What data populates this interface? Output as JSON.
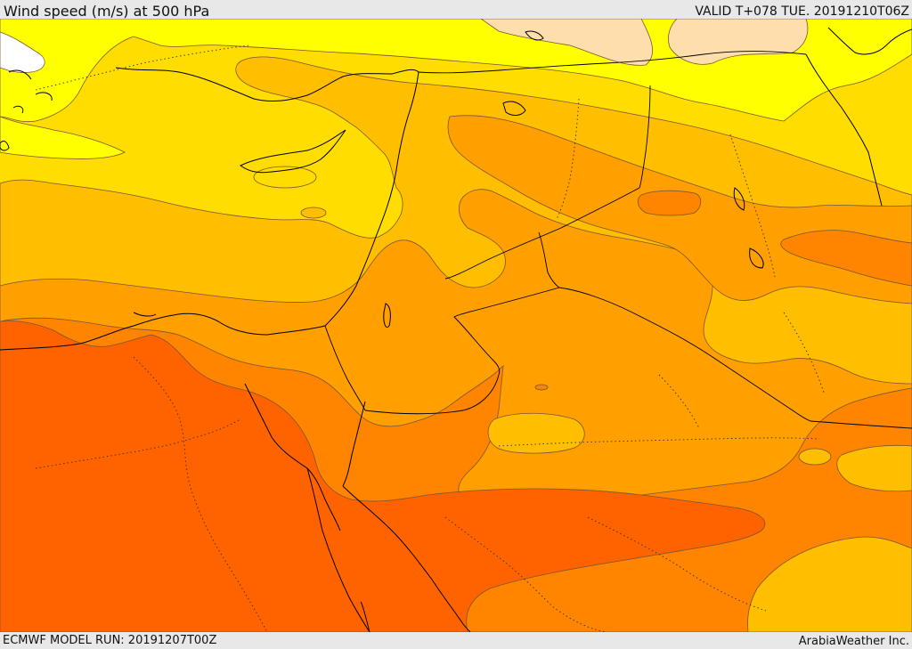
{
  "header": {
    "title": "Wind speed (m/s) at 500 hPa",
    "valid_time": "VALID T+078 TUE. 20191210T06Z"
  },
  "footer": {
    "model_run": "ECMWF MODEL RUN: 20191207T00Z",
    "credit": "ArabiaWeather Inc."
  },
  "map": {
    "variable": "wind speed",
    "pressure_level_hpa": 500,
    "colors": {
      "band_calm": "#ffffff",
      "band_light_yellow": "#ffff00",
      "band_yellow": "#ffdd00",
      "band_amber": "#ffbf00",
      "band_orange": "#ff9f00",
      "band_dark_orange": "#ff8400",
      "band_red_orange": "#ff6300",
      "band_peach": "#ffdead",
      "borders": "#000000",
      "contour_lines": "#7a5530"
    }
  }
}
